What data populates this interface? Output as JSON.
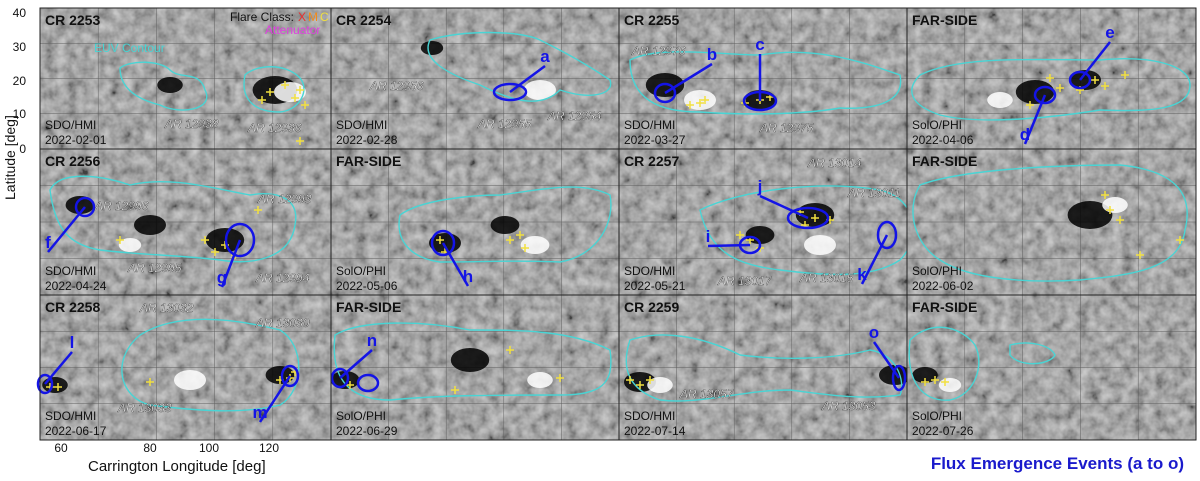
{
  "figure": {
    "y_axis_label": "Latitude [deg]",
    "x_axis_label": "Carrington Longitude [deg]",
    "y_ticks": [
      "40",
      "30",
      "20",
      "10",
      "0"
    ],
    "x_ticks": [
      "60",
      "80",
      "100",
      "120"
    ],
    "legend": {
      "flare_class_label": "Flare Class:",
      "classes": [
        "X",
        "M",
        "C"
      ],
      "attenuator_label": "Attenuator",
      "euv_contour_label": "EUV Contour"
    },
    "caption": "Flux Emergence Events (a to o)"
  },
  "colors": {
    "background": "#8c8c8c",
    "euv_contour": "#49d4d4",
    "event_marker": "#1414e6",
    "flare_x": "#e83030",
    "flare_m": "#f08a1c",
    "flare_c": "#f2e040",
    "attenuator": "#e040e0",
    "caption": "#1a1acc"
  },
  "panels": [
    {
      "title": "CR 2253",
      "instrument": "SDO/HMI",
      "date": "2022-02-01",
      "ar_labels": [
        "AR 12938",
        "AR 12936"
      ],
      "events": []
    },
    {
      "title": "CR 2254",
      "instrument": "SDO/HMI",
      "date": "2022-02-28",
      "ar_labels": [
        "AR 12956",
        "AR 12955",
        "AR 12954"
      ],
      "events": [
        "a"
      ]
    },
    {
      "title": "CR 2255",
      "instrument": "SDO/HMI",
      "date": "2022-03-27",
      "ar_labels": [
        "AR 12976",
        "AR 12975"
      ],
      "events": [
        "b",
        "c"
      ]
    },
    {
      "title": "FAR-SIDE",
      "instrument": "SolO/PHI",
      "date": "2022-04-06",
      "ar_labels": [],
      "events": [
        "e",
        "d"
      ]
    },
    {
      "title": "CR 2256",
      "instrument": "SDO/HMI",
      "date": "2022-04-24",
      "ar_labels": [
        "AR 12996",
        "AR 12993",
        "AR 12995",
        "AR 12994"
      ],
      "events": [
        "f",
        "g"
      ]
    },
    {
      "title": "FAR-SIDE",
      "instrument": "SolO/PHI",
      "date": "2022-05-06",
      "ar_labels": [],
      "events": [
        "h"
      ]
    },
    {
      "title": "CR 2257",
      "instrument": "SDO/HMI",
      "date": "2022-05-21",
      "ar_labels": [
        "AR 13014",
        "AR 13011",
        "AR 13017",
        "AR 13015"
      ],
      "events": [
        "j",
        "i",
        "k"
      ]
    },
    {
      "title": "FAR-SIDE",
      "instrument": "SolO/PHI",
      "date": "2022-06-02",
      "ar_labels": [],
      "events": []
    },
    {
      "title": "CR 2258",
      "instrument": "SDO/HMI",
      "date": "2022-06-17",
      "ar_labels": [
        "AR 13032",
        "AR 13030",
        "AR 13033"
      ],
      "events": [
        "l",
        "m"
      ]
    },
    {
      "title": "FAR-SIDE",
      "instrument": "SolO/PHI",
      "date": "2022-06-29",
      "ar_labels": [],
      "events": [
        "n"
      ]
    },
    {
      "title": "CR 2259",
      "instrument": "SDO/HMI",
      "date": "2022-07-14",
      "ar_labels": [
        "AR 13057",
        "AR 13053"
      ],
      "events": [
        "o"
      ]
    },
    {
      "title": "FAR-SIDE",
      "instrument": "SolO/PHI",
      "date": "2022-07-26",
      "ar_labels": [],
      "events": []
    }
  ]
}
